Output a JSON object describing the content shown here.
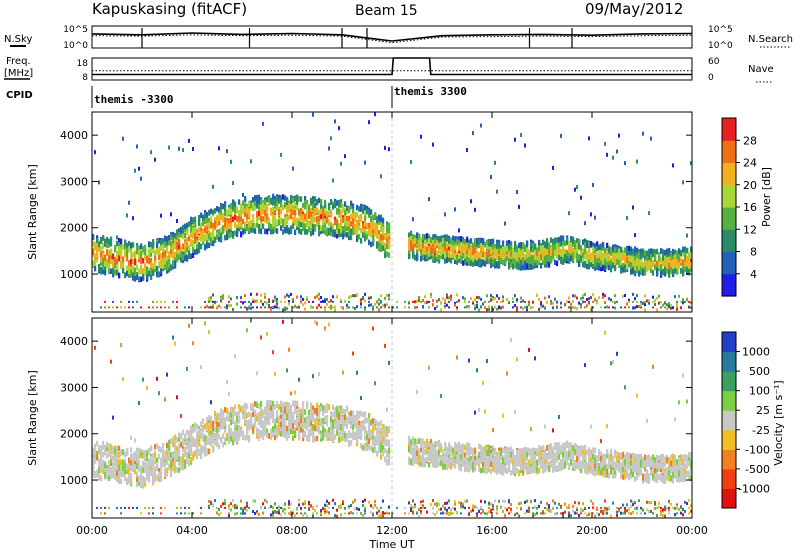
{
  "header": {
    "station": "Kapuskasing (fitACF)",
    "beam": "Beam 15",
    "date": "09/May/2012"
  },
  "side_labels": {
    "nsky": "N.Sky",
    "nsearch": "N.Search",
    "freq": "Freq.",
    "freq_unit": "[MHz]",
    "nave": "Nave",
    "cpid": "CPID"
  },
  "small_ticks": {
    "noise_left_top": "10^5",
    "noise_left_bottom": "10^0",
    "noise_right_top": "10^5",
    "noise_right_bottom": "10^0",
    "freq_left_top": "18",
    "freq_left_bottom": "8",
    "nave_right_top": "60",
    "nave_right_bottom": "0"
  },
  "cpid_labels": [
    "themis -3300",
    "themis 3300"
  ],
  "x_axis": {
    "label": "Time UT",
    "ticks": [
      "00:00",
      "04:00",
      "08:00",
      "12:00",
      "16:00",
      "20:00",
      "00:00"
    ]
  },
  "panels": {
    "power_ylabel": "Slant Range [km]",
    "velocity_ylabel": "Slant Range [km]",
    "y_ticks": [
      "1000",
      "2000",
      "3000",
      "4000"
    ]
  },
  "power_scale": {
    "title": "Power [dB]",
    "ticks": [
      "4",
      "8",
      "12",
      "16",
      "20",
      "24",
      "28"
    ],
    "colors": [
      "#1e1ee6",
      "#2460b8",
      "#2a8a6a",
      "#58b040",
      "#a8d838",
      "#f0b020",
      "#f07018",
      "#e82020"
    ]
  },
  "velocity_scale": {
    "title": "Velocity [m s⁻¹]",
    "ticks": [
      "1000",
      "500",
      "100",
      "25",
      "-25",
      "-100",
      "-500",
      "-1000"
    ],
    "colors": [
      "#2040c8",
      "#2a7aa0",
      "#3aa060",
      "#7ad040",
      "#c8c8c8",
      "#f0c020",
      "#f08020",
      "#f04010",
      "#e01010"
    ]
  },
  "chart_data": [
    {
      "type": "line",
      "title": "Kapuskasing (fitACF) Beam 15 09/May/2012",
      "panel": "noise",
      "x_range": [
        "00:00",
        "24:00"
      ],
      "series": [
        {
          "name": "N.Sky",
          "x_hours": [
            0,
            2,
            4,
            6,
            8,
            10,
            12,
            14,
            16,
            18,
            20,
            22,
            24
          ],
          "values": [
            3.2,
            3.0,
            3.4,
            3.1,
            3.3,
            3.0,
            1.6,
            2.8,
            3.0,
            3.1,
            2.9,
            3.2,
            3.3
          ]
        },
        {
          "name": "N.Search",
          "x_hours": [
            0,
            2,
            4,
            6,
            8,
            10,
            12,
            14,
            16,
            18,
            20,
            22,
            24
          ],
          "values": [
            2.8,
            2.7,
            3.0,
            2.8,
            2.9,
            2.7,
            1.2,
            2.5,
            2.6,
            2.7,
            2.6,
            2.8,
            2.9
          ]
        }
      ],
      "ylim_log10": [
        0,
        5
      ]
    },
    {
      "type": "line",
      "panel": "freq-nave",
      "series": [
        {
          "name": "Freq.",
          "x_hours": [
            0,
            12,
            12.05,
            13.5,
            13.55,
            24
          ],
          "values": [
            10.5,
            10.5,
            18,
            18,
            10.5,
            10.5
          ]
        },
        {
          "name": "Nave",
          "x_hours": [
            0,
            12,
            24
          ],
          "values": [
            25,
            25,
            25
          ]
        }
      ],
      "freq_ylim": [
        8,
        18
      ],
      "nave_ylim": [
        0,
        60
      ]
    },
    {
      "type": "heatmap",
      "panel": "power",
      "xlabel": "Time UT",
      "ylabel": "Slant Range [km]",
      "ylim": [
        180,
        4500
      ],
      "colorbar": "Power [dB]",
      "clim": [
        0,
        30
      ],
      "scatter_band": [
        {
          "t_hours": 0.0,
          "range_km": 1500
        },
        {
          "t_hours": 1.0,
          "range_km": 1400
        },
        {
          "t_hours": 2.0,
          "range_km": 1300
        },
        {
          "t_hours": 3.0,
          "range_km": 1500
        },
        {
          "t_hours": 4.0,
          "range_km": 1850
        },
        {
          "t_hours": 5.0,
          "range_km": 2150
        },
        {
          "t_hours": 6.0,
          "range_km": 2300
        },
        {
          "t_hours": 7.0,
          "range_km": 2350
        },
        {
          "t_hours": 8.0,
          "range_km": 2350
        },
        {
          "t_hours": 9.0,
          "range_km": 2300
        },
        {
          "t_hours": 10.0,
          "range_km": 2250
        },
        {
          "t_hours": 11.0,
          "range_km": 2100
        },
        {
          "t_hours": 11.8,
          "range_km": 1800
        },
        {
          "t_hours": 13.0,
          "range_km": 1650
        },
        {
          "t_hours": 14.0,
          "range_km": 1600
        },
        {
          "t_hours": 15.0,
          "range_km": 1550
        },
        {
          "t_hours": 16.0,
          "range_km": 1500
        },
        {
          "t_hours": 17.0,
          "range_km": 1450
        },
        {
          "t_hours": 18.0,
          "range_km": 1500
        },
        {
          "t_hours": 19.0,
          "range_km": 1600
        },
        {
          "t_hours": 20.0,
          "range_km": 1450
        },
        {
          "t_hours": 21.0,
          "range_km": 1400
        },
        {
          "t_hours": 22.0,
          "range_km": 1300
        },
        {
          "t_hours": 23.0,
          "range_km": 1300
        },
        {
          "t_hours": 24.0,
          "range_km": 1350
        }
      ]
    },
    {
      "type": "heatmap",
      "panel": "velocity",
      "xlabel": "Time UT",
      "ylabel": "Slant Range [km]",
      "ylim": [
        180,
        4500
      ],
      "colorbar": "Velocity [m s⁻¹]",
      "clim": [
        -1000,
        1000
      ],
      "note_values": "mostly near ground-scatter (grey, ±25 m/s) following same band as power panel"
    }
  ]
}
